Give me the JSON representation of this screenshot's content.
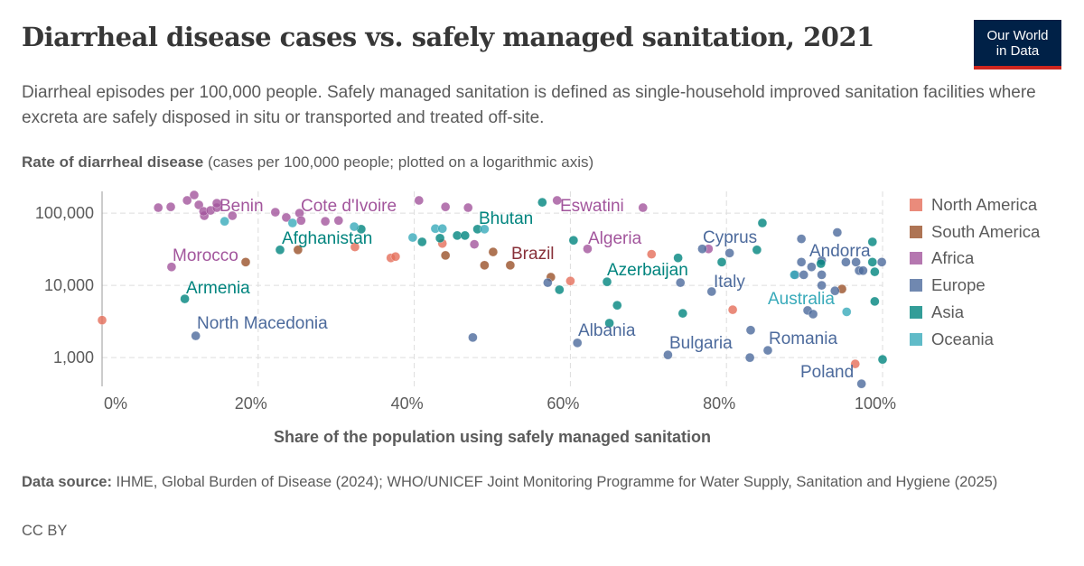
{
  "header": {
    "title": "Diarrheal disease cases vs. safely managed sanitation, 2021",
    "subtitle": "Diarrheal episodes per 100,000 people. Safely managed sanitation is defined as single-household improved sanitation facilities where excreta are safely disposed in situ or transported and treated off-site.",
    "logo_line1": "Our World",
    "logo_line2": "in Data"
  },
  "footer": {
    "source_label": "Data source:",
    "source_text": "IHME, Global Burden of Disease (2024); WHO/UNICEF Joint Monitoring Programme for Water Supply, Sanitation and Hygiene (2025)",
    "license": "CC BY"
  },
  "chart_data": {
    "type": "scatter",
    "title": "Diarrheal disease cases vs. safely managed sanitation, 2021",
    "ylabel_bold": "Rate of diarrheal disease",
    "ylabel_rest": "(cases per 100,000 people; plotted on a logarithmic axis)",
    "xlabel": "Share of the population using safely managed sanitation",
    "xscale": "linear",
    "yscale": "log",
    "xlim": [
      0,
      100
    ],
    "ylim": [
      400,
      200000
    ],
    "xticks": [
      {
        "v": 0,
        "label": "0%"
      },
      {
        "v": 20,
        "label": "20%"
      },
      {
        "v": 40,
        "label": "40%"
      },
      {
        "v": 60,
        "label": "60%"
      },
      {
        "v": 80,
        "label": "80%"
      },
      {
        "v": 100,
        "label": "100%"
      }
    ],
    "yticks": [
      {
        "v": 1000,
        "label": "1,000"
      },
      {
        "v": 10000,
        "label": "10,000"
      },
      {
        "v": 100000,
        "label": "100,000"
      }
    ],
    "grid": true,
    "legend_position": "right",
    "series": [
      {
        "name": "North America",
        "color": "#E56E5A",
        "label_color": "#C2462F",
        "points": [
          [
            0,
            3300
          ],
          [
            32.4,
            34000
          ],
          [
            37.0,
            24000
          ],
          [
            37.6,
            25000
          ],
          [
            43.6,
            38000
          ],
          [
            60.0,
            11500
          ],
          [
            70.4,
            27000
          ],
          [
            80.8,
            4600
          ],
          [
            96.5,
            818
          ]
        ]
      },
      {
        "name": "South America",
        "color": "#9A5129",
        "label_color": "#883039",
        "points": [
          [
            25.1,
            31000
          ],
          [
            18.4,
            21000
          ],
          [
            44.0,
            26000
          ],
          [
            50.1,
            29000
          ],
          [
            49.0,
            19000
          ],
          [
            52.3,
            19000,
            "Brazil"
          ],
          [
            57.5,
            13000
          ],
          [
            94.8,
            8900
          ]
        ]
      },
      {
        "name": "Africa",
        "color": "#A2559C",
        "label_color": "#A2559C",
        "points": [
          [
            7.2,
            119000
          ],
          [
            8.8,
            122000
          ],
          [
            10.9,
            150000
          ],
          [
            11.8,
            178000
          ],
          [
            12.4,
            130000
          ],
          [
            13.1,
            92000
          ],
          [
            13.0,
            106000
          ],
          [
            13.9,
            109000
          ],
          [
            14.7,
            119000,
            "Benin"
          ],
          [
            14.7,
            137000
          ],
          [
            16.7,
            92000
          ],
          [
            22.2,
            103000
          ],
          [
            23.6,
            87000
          ],
          [
            25.3,
            100000,
            "Cote d'Ivoire"
          ],
          [
            25.5,
            79000
          ],
          [
            28.6,
            77000
          ],
          [
            30.3,
            79000
          ],
          [
            40.6,
            150000
          ],
          [
            44.0,
            122000
          ],
          [
            46.9,
            119000
          ],
          [
            47.7,
            37000
          ],
          [
            8.9,
            18000,
            "Morocco"
          ],
          [
            58.3,
            150000,
            "Eswatini"
          ],
          [
            69.3,
            119000
          ],
          [
            62.2,
            32000,
            "Algeria"
          ],
          [
            77.7,
            32000
          ]
        ]
      },
      {
        "name": "Europe",
        "color": "#4C6A9C",
        "label_color": "#4C6A9C",
        "points": [
          [
            12.0,
            2000,
            "North Macedonia"
          ],
          [
            47.5,
            1900
          ],
          [
            57.1,
            10900
          ],
          [
            60.9,
            1600,
            "Albania"
          ],
          [
            72.5,
            1090,
            "Bulgaria"
          ],
          [
            74.1,
            10900
          ],
          [
            76.9,
            32000,
            "Cyprus"
          ],
          [
            80.4,
            28000
          ],
          [
            78.1,
            8200,
            "Italy"
          ],
          [
            83.1,
            2400
          ],
          [
            83.0,
            1000
          ],
          [
            85.3,
            1260,
            "Romania"
          ],
          [
            89.6,
            21000
          ],
          [
            88.8,
            14000
          ],
          [
            89.9,
            14000
          ],
          [
            90.9,
            18000
          ],
          [
            92.2,
            22000
          ],
          [
            92.2,
            14000
          ],
          [
            90.4,
            4500
          ],
          [
            91.1,
            4000
          ],
          [
            94.2,
            54000
          ],
          [
            95.3,
            21000
          ],
          [
            96.6,
            21000
          ],
          [
            97.0,
            16000
          ],
          [
            99.9,
            21000,
            "Andorra"
          ],
          [
            97.5,
            16000
          ],
          [
            93.9,
            8400
          ],
          [
            92.2,
            10000
          ],
          [
            89.6,
            44000
          ],
          [
            97.3,
            434,
            "Poland"
          ]
        ]
      },
      {
        "name": "Asia",
        "color": "#00847E",
        "label_color": "#00847E",
        "points": [
          [
            56.4,
            141000
          ],
          [
            60.4,
            42000
          ],
          [
            58.6,
            8700
          ],
          [
            64.7,
            11200,
            "Azerbaijan"
          ],
          [
            66.0,
            5300
          ],
          [
            65.0,
            3000
          ],
          [
            73.8,
            24000
          ],
          [
            74.4,
            4100
          ],
          [
            79.4,
            21000
          ],
          [
            84.6,
            73000
          ],
          [
            83.9,
            31000
          ],
          [
            92.1,
            20000
          ],
          [
            98.7,
            21000
          ],
          [
            99.0,
            15400
          ],
          [
            99.0,
            6000
          ],
          [
            100,
            944
          ],
          [
            98.7,
            40000
          ],
          [
            22.8,
            31000,
            "Afghanistan"
          ],
          [
            33.2,
            60000
          ],
          [
            41.0,
            40000
          ],
          [
            43.3,
            45000
          ],
          [
            45.5,
            49000
          ],
          [
            46.5,
            49000
          ],
          [
            48.1,
            60000,
            "Bhutan"
          ],
          [
            10.6,
            6500,
            "Armenia"
          ]
        ]
      },
      {
        "name": "Oceania",
        "color": "#38AABA",
        "label_color": "#38AABA",
        "points": [
          [
            15.7,
            77000
          ],
          [
            24.4,
            73000
          ],
          [
            32.3,
            65000
          ],
          [
            39.8,
            46000
          ],
          [
            42.7,
            61000
          ],
          [
            43.6,
            61000
          ],
          [
            49.0,
            60000
          ],
          [
            88.7,
            14000
          ],
          [
            95.4,
            4300,
            "Australia"
          ]
        ]
      }
    ]
  }
}
